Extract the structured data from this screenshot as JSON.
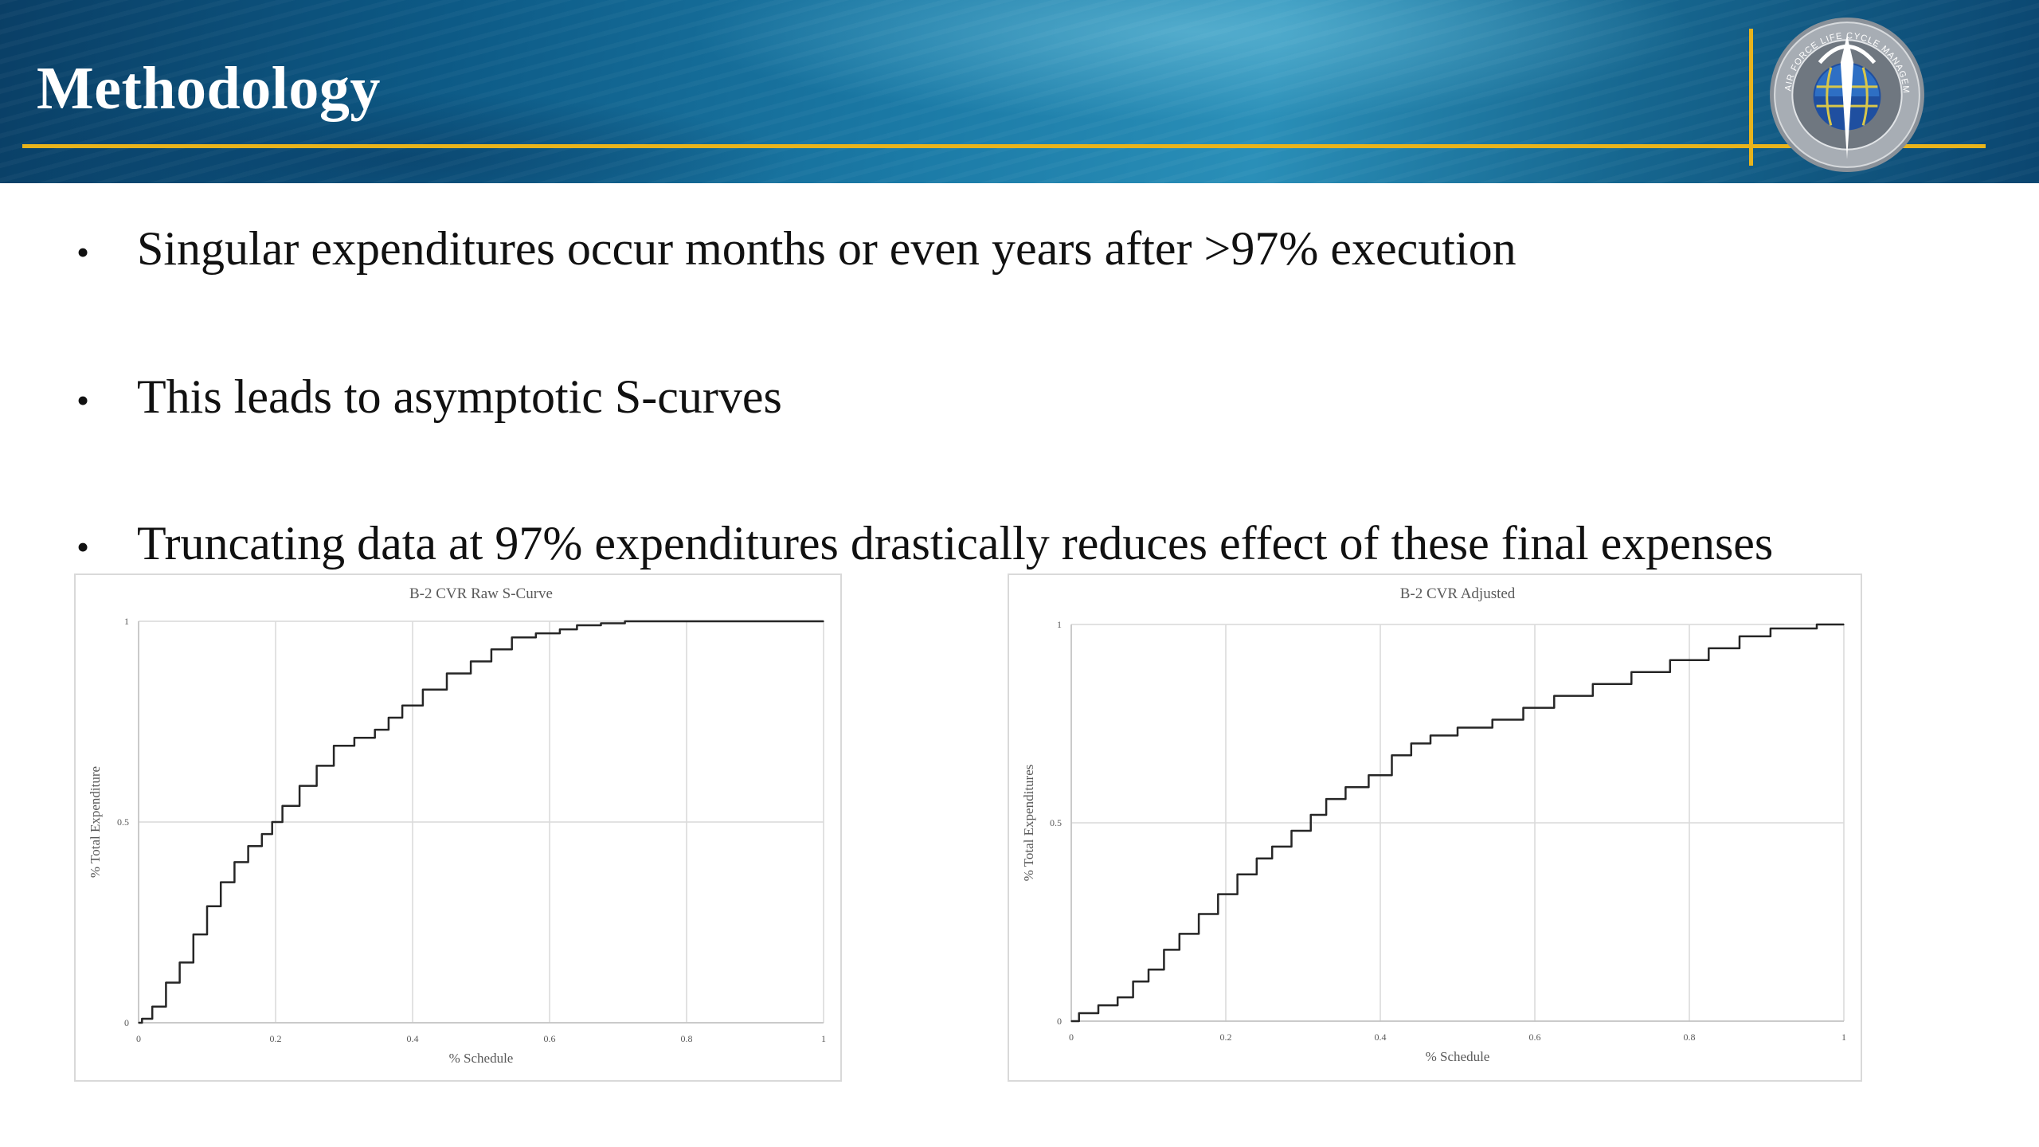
{
  "slide": {
    "title": "Methodology",
    "seal_text": "AIR FORCE LIFE CYCLE MANAGEMENT CENTER",
    "colors": {
      "banner": "#0d5a86",
      "gold": "#e9b41c"
    }
  },
  "bullets": [
    {
      "symbol": "•",
      "text": "Singular expenditures occur months or even years after >97% execution"
    },
    {
      "symbol": "•",
      "text": "This leads to asymptotic S-curves"
    },
    {
      "symbol": "•",
      "text": "Truncating data at 97% expenditures drastically reduces effect of these final expenses"
    }
  ],
  "chart_data": [
    {
      "type": "line",
      "title": "B-2 CVR Raw S-Curve",
      "xlabel": "% Schedule",
      "ylabel": "% Total Expenditure",
      "xlim": [
        0,
        1
      ],
      "ylim": [
        0,
        1
      ],
      "xticks": [
        "0",
        "0.2",
        "0.4",
        "0.6",
        "0.8",
        "1"
      ],
      "yticks": [
        "0",
        "0.5",
        "1"
      ],
      "grid": true,
      "series": [
        {
          "color": "#262626",
          "x": [
            0,
            0.01,
            0.03,
            0.05,
            0.07,
            0.09,
            0.11,
            0.13,
            0.15,
            0.17,
            0.19,
            0.2,
            0.22,
            0.25,
            0.27,
            0.3,
            0.33,
            0.36,
            0.37,
            0.4,
            0.43,
            0.47,
            0.5,
            0.53,
            0.56,
            0.6,
            0.63,
            0.65,
            0.7,
            0.72,
            0.8,
            0.9,
            1.0
          ],
          "y": [
            0,
            0.01,
            0.04,
            0.1,
            0.15,
            0.22,
            0.29,
            0.35,
            0.4,
            0.44,
            0.47,
            0.5,
            0.54,
            0.59,
            0.64,
            0.69,
            0.71,
            0.73,
            0.76,
            0.79,
            0.83,
            0.87,
            0.9,
            0.93,
            0.96,
            0.97,
            0.98,
            0.99,
            0.995,
            1.0,
            1.0,
            1.0,
            1.0
          ]
        }
      ]
    },
    {
      "type": "line",
      "title": "B-2 CVR Adjusted",
      "xlabel": "% Schedule",
      "ylabel": "% Total Expenditures",
      "xlim": [
        0,
        1
      ],
      "ylim": [
        0,
        1
      ],
      "xticks": [
        "0",
        "0.2",
        "0.4",
        "0.6",
        "0.8",
        "1"
      ],
      "yticks": [
        "0",
        "0.5",
        "1"
      ],
      "grid": true,
      "series": [
        {
          "color": "#262626",
          "x": [
            0,
            0.02,
            0.05,
            0.07,
            0.09,
            0.11,
            0.13,
            0.15,
            0.18,
            0.2,
            0.23,
            0.25,
            0.27,
            0.3,
            0.32,
            0.34,
            0.37,
            0.4,
            0.43,
            0.45,
            0.48,
            0.52,
            0.57,
            0.6,
            0.65,
            0.7,
            0.75,
            0.8,
            0.85,
            0.88,
            0.93,
            1.0
          ],
          "y": [
            0,
            0.02,
            0.04,
            0.06,
            0.1,
            0.13,
            0.18,
            0.22,
            0.27,
            0.32,
            0.37,
            0.41,
            0.44,
            0.48,
            0.52,
            0.56,
            0.59,
            0.62,
            0.67,
            0.7,
            0.72,
            0.74,
            0.76,
            0.79,
            0.82,
            0.85,
            0.88,
            0.91,
            0.94,
            0.97,
            0.99,
            1.0
          ]
        }
      ]
    }
  ]
}
